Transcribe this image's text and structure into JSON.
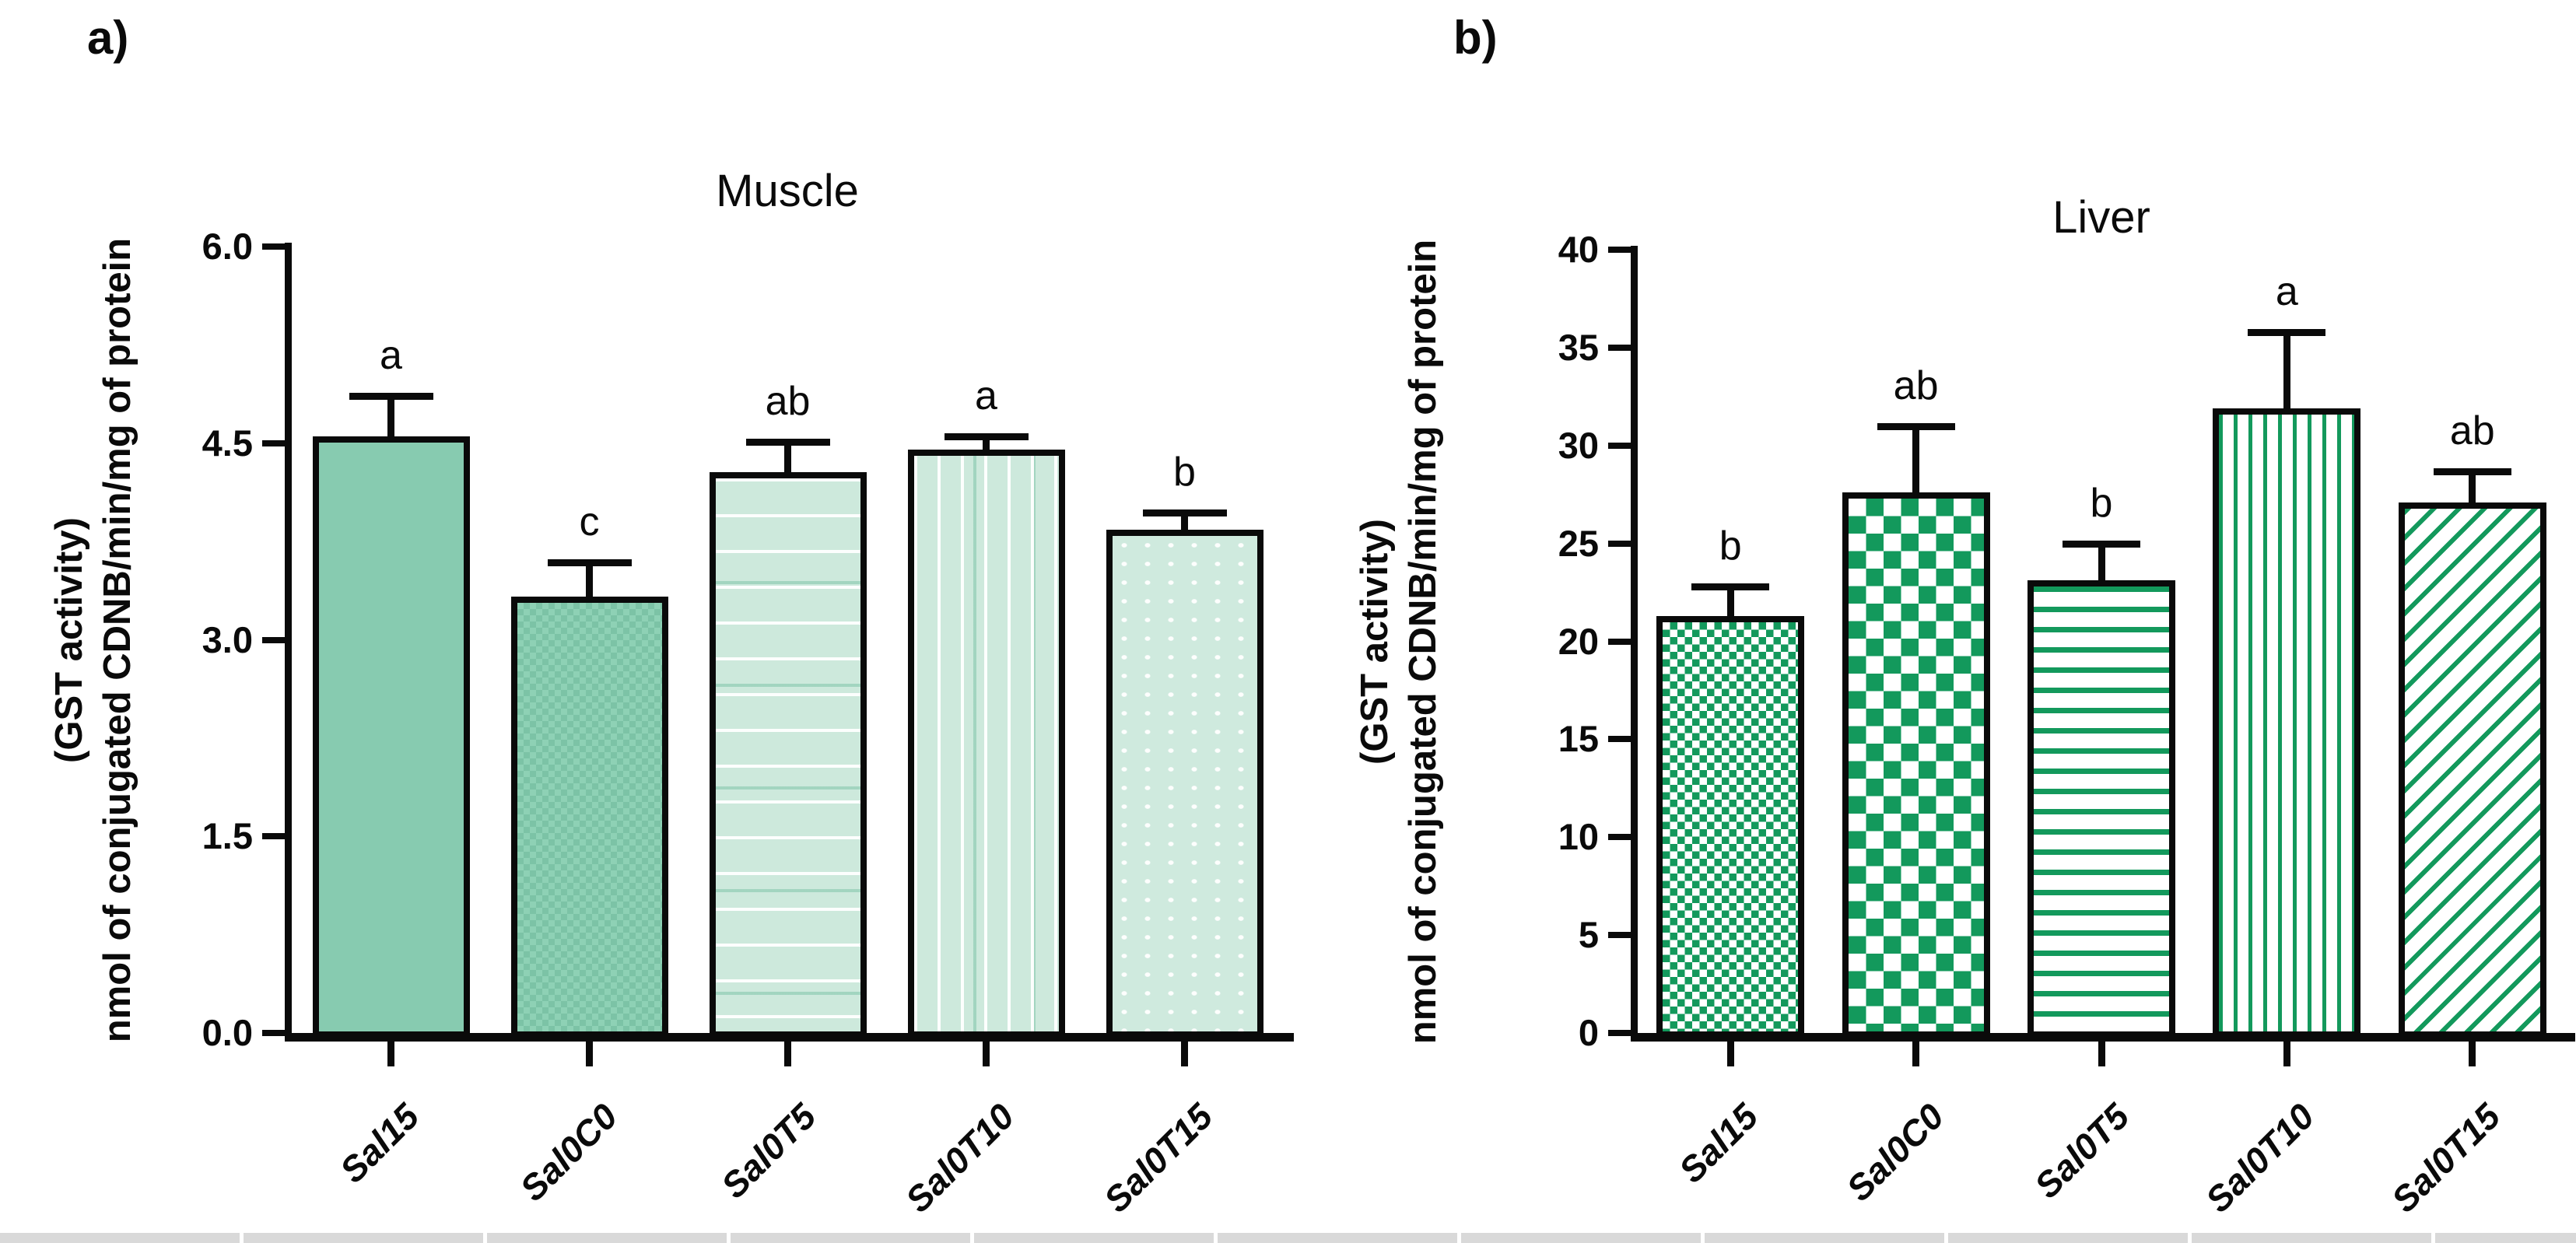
{
  "figure": {
    "background": "#ffffff",
    "bottom_strip_color": "#d9d9d9"
  },
  "colors": {
    "axis_black": "#0a0a0a",
    "liver_pattern_green": "#13995c",
    "muscle_solid_teal": "#87cbb0",
    "muscle_light_teal": "#cde9dc"
  },
  "chart_data": [
    {
      "type": "bar",
      "panel_label": "a)",
      "title": "Muscle",
      "ylabel_lines": [
        "(GST activity)",
        "nmol of conjugated CDNB/min/mg of protein"
      ],
      "categories": [
        "Sal15",
        "Sal0C0",
        "Sal0T5",
        "Sal0T10",
        "Sal0T15"
      ],
      "values": [
        4.55,
        3.33,
        4.28,
        4.45,
        3.84
      ],
      "errors": [
        0.28,
        0.23,
        0.2,
        0.07,
        0.1
      ],
      "sig_letters": [
        "a",
        "c",
        "ab",
        "a",
        "b"
      ],
      "ylim": [
        0,
        6
      ],
      "ytick_values": [
        0,
        1.5,
        3,
        4.5,
        6
      ],
      "ytick_labels": [
        "0.0",
        "1.5",
        "3.0",
        "4.5",
        "6.0"
      ],
      "bar_patterns": [
        "solid-teal",
        "check-teal",
        "hlines-teal",
        "vlines-teal",
        "dots-teal"
      ],
      "grid": false,
      "legend": null
    },
    {
      "type": "bar",
      "panel_label": "b)",
      "title": "Liver",
      "ylabel_lines": [
        "(GST activity)",
        "nmol of conjugated CDNB/min/mg of protein"
      ],
      "categories": [
        "Sal15",
        "Sal0C0",
        "Sal0T5",
        "Sal0T10",
        "Sal0T15"
      ],
      "values": [
        21.3,
        27.6,
        23.1,
        31.9,
        27.1
      ],
      "errors": [
        1.3,
        3.2,
        1.7,
        3.7,
        1.4
      ],
      "sig_letters": [
        "b",
        "ab",
        "b",
        "a",
        "ab"
      ],
      "ylim": [
        0,
        40
      ],
      "ytick_values": [
        0,
        5,
        10,
        15,
        20,
        25,
        30,
        35,
        40
      ],
      "ytick_labels": [
        "0",
        "5",
        "10",
        "15",
        "20",
        "25",
        "30",
        "35",
        "40"
      ],
      "bar_patterns": [
        "fine-check-green",
        "check-green",
        "hlines-green",
        "vlines-green",
        "diag-green"
      ],
      "grid": false,
      "legend": null
    }
  ]
}
